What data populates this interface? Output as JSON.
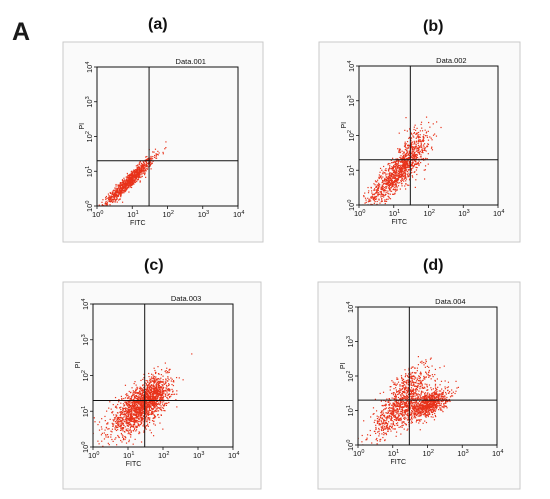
{
  "figure_letter": "A",
  "colors": {
    "points": "#e8321a",
    "frame": "#c9c9c9",
    "lines": "#111111"
  },
  "chart_data": [
    {
      "type": "scatter",
      "panel": "(a)",
      "title": "Data.001",
      "xlabel": "FITC",
      "ylabel": "PI",
      "xscale": "log",
      "yscale": "log",
      "xlim": [
        1,
        10000
      ],
      "ylim": [
        1,
        10000
      ],
      "x_ticks": [
        "10",
        "10",
        "10",
        "10",
        "10"
      ],
      "x_tick_exponents": [
        "0",
        "1",
        "2",
        "3",
        "4"
      ],
      "y_ticks": [
        "10",
        "10",
        "10",
        "10",
        "10"
      ],
      "y_tick_exponents": [
        "0",
        "1",
        "2",
        "3",
        "4"
      ],
      "quadrant_gate": {
        "x": 30,
        "y": 20
      },
      "populations": [
        {
          "center": [
            8,
            5
          ],
          "spread": [
            0.35,
            0.35
          ],
          "corr": 0.95,
          "count": 900
        }
      ]
    },
    {
      "type": "scatter",
      "panel": "(b)",
      "title": "Data.002",
      "xlabel": "FITC",
      "ylabel": "PI",
      "xscale": "log",
      "yscale": "log",
      "xlim": [
        1,
        10000
      ],
      "ylim": [
        1,
        10000
      ],
      "x_ticks": [
        "10",
        "10",
        "10",
        "10",
        "10"
      ],
      "x_tick_exponents": [
        "0",
        "1",
        "2",
        "3",
        "4"
      ],
      "y_ticks": [
        "10",
        "10",
        "10",
        "10",
        "10"
      ],
      "y_tick_exponents": [
        "0",
        "1",
        "2",
        "3",
        "4"
      ],
      "quadrant_gate": {
        "x": 30,
        "y": 20
      },
      "populations": [
        {
          "center": [
            12,
            8
          ],
          "spread": [
            0.4,
            0.45
          ],
          "corr": 0.85,
          "count": 900
        },
        {
          "center": [
            40,
            40
          ],
          "spread": [
            0.22,
            0.4
          ],
          "corr": 0.3,
          "count": 250
        }
      ]
    },
    {
      "type": "scatter",
      "panel": "(c)",
      "title": "Data.003",
      "xlabel": "FITC",
      "ylabel": "PI",
      "xscale": "log",
      "yscale": "log",
      "xlim": [
        1,
        10000
      ],
      "ylim": [
        1,
        10000
      ],
      "x_ticks": [
        "10",
        "10",
        "10",
        "10",
        "10"
      ],
      "x_tick_exponents": [
        "0",
        "1",
        "2",
        "3",
        "4"
      ],
      "y_ticks": [
        "10",
        "10",
        "10",
        "10",
        "10"
      ],
      "y_tick_exponents": [
        "0",
        "1",
        "2",
        "3",
        "4"
      ],
      "quadrant_gate": {
        "x": 30,
        "y": 20
      },
      "populations": [
        {
          "center": [
            20,
            12
          ],
          "spread": [
            0.42,
            0.38
          ],
          "corr": 0.65,
          "count": 1400
        },
        {
          "center": [
            60,
            30
          ],
          "spread": [
            0.2,
            0.3
          ],
          "corr": 0.4,
          "count": 400
        }
      ]
    },
    {
      "type": "scatter",
      "panel": "(d)",
      "title": "Data.004",
      "xlabel": "FITC",
      "ylabel": "PI",
      "xscale": "log",
      "yscale": "log",
      "xlim": [
        1,
        10000
      ],
      "ylim": [
        1,
        10000
      ],
      "x_ticks": [
        "10",
        "10",
        "10",
        "10",
        "10"
      ],
      "x_tick_exponents": [
        "0",
        "1",
        "2",
        "3",
        "4"
      ],
      "y_ticks": [
        "10",
        "10",
        "10",
        "10",
        "10"
      ],
      "y_tick_exponents": [
        "0",
        "1",
        "2",
        "3",
        "4"
      ],
      "quadrant_gate": {
        "x": 30,
        "y": 20
      },
      "populations": [
        {
          "center": [
            15,
            12
          ],
          "spread": [
            0.4,
            0.45
          ],
          "corr": 0.75,
          "count": 700
        },
        {
          "center": [
            100,
            15
          ],
          "spread": [
            0.3,
            0.22
          ],
          "corr": 0.55,
          "count": 800
        },
        {
          "center": [
            30,
            60
          ],
          "spread": [
            0.35,
            0.35
          ],
          "corr": 0.6,
          "count": 200
        }
      ]
    }
  ]
}
